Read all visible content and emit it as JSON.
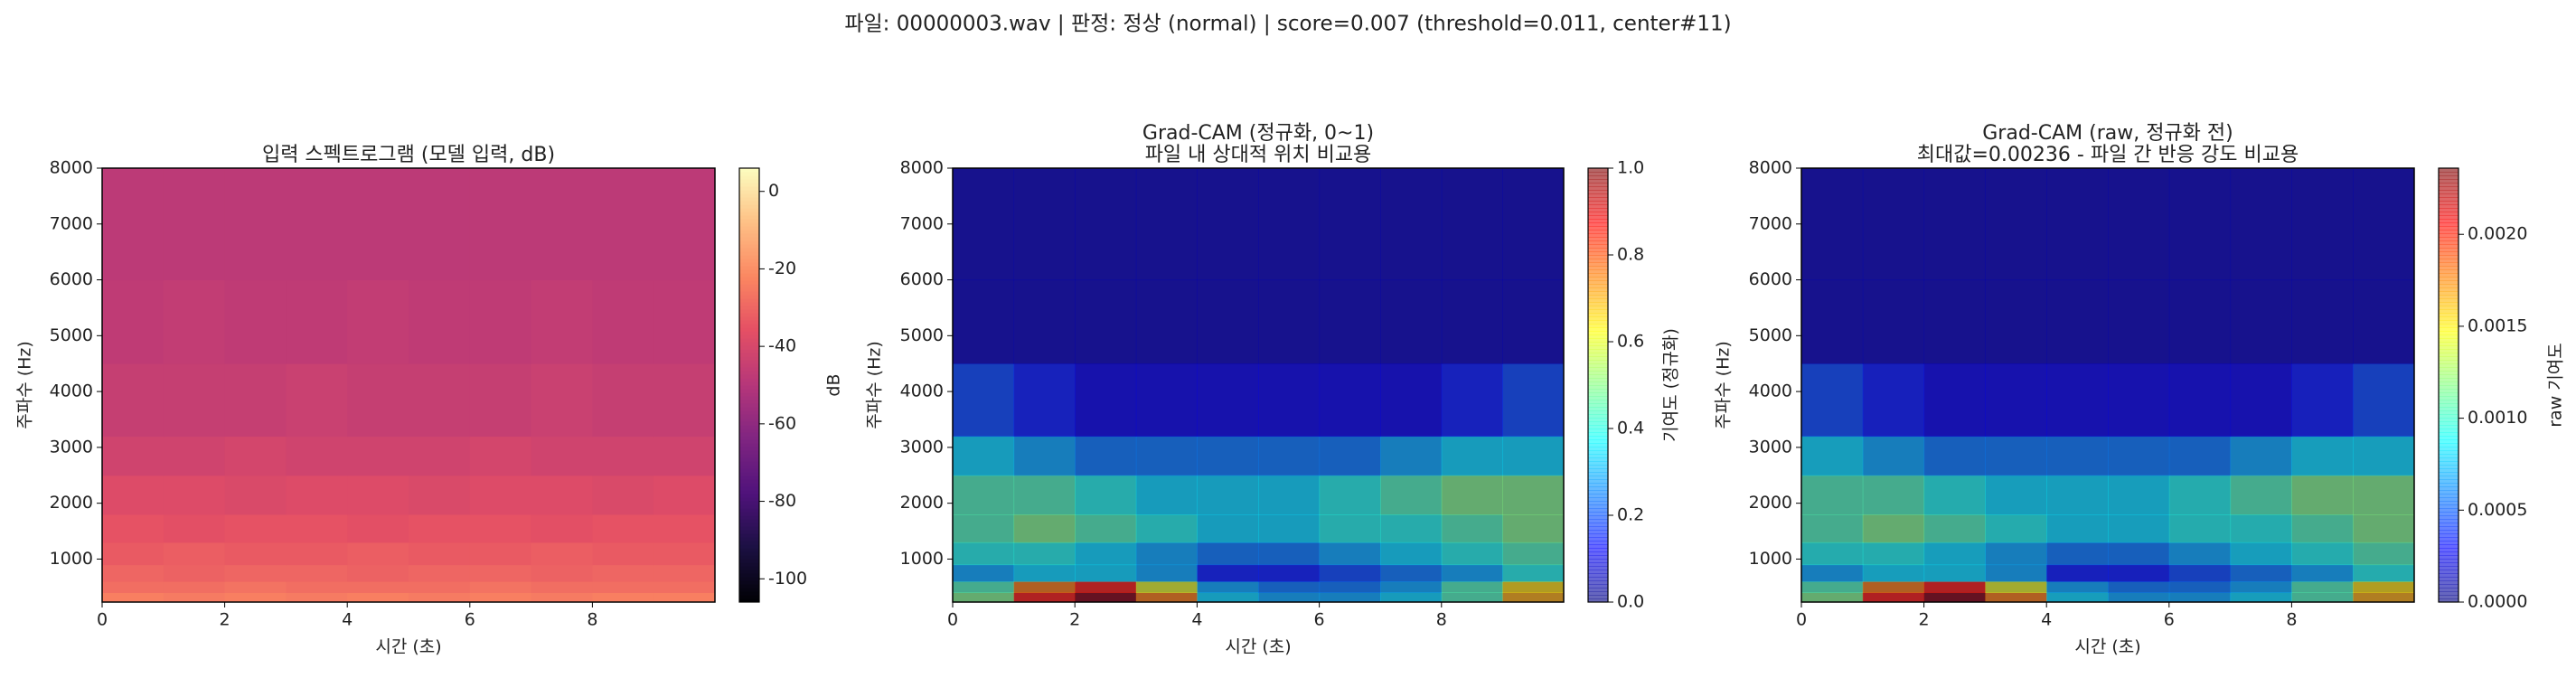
{
  "suptitle": "파일: 00000003.wav   |   판정: 정상 (normal)   |   score=0.007 (threshold=0.011, center#11)",
  "chart_data": [
    {
      "type": "heatmap",
      "title": [
        "입력 스펙트로그램 (모델 입력, dB)"
      ],
      "xlabel": "시간 (초)",
      "ylabel": "주파수 (Hz)",
      "colormap": "magma",
      "alpha": 1,
      "x_edges": [
        0,
        1,
        2,
        3,
        4,
        5,
        6,
        7,
        8,
        9,
        10
      ],
      "y_edges": [
        230,
        400,
        600,
        900,
        1300,
        1800,
        2500,
        3200,
        4500,
        6000,
        8000
      ],
      "z": [
        [
          -24,
          -25,
          -24,
          -25,
          -24,
          -25,
          -24,
          -25,
          -24,
          -24
        ],
        [
          -28,
          -28,
          -27,
          -28,
          -28,
          -28,
          -27,
          -28,
          -28,
          -28
        ],
        [
          -30,
          -31,
          -30,
          -30,
          -31,
          -30,
          -30,
          -31,
          -30,
          -30
        ],
        [
          -33,
          -32,
          -33,
          -33,
          -32,
          -33,
          -33,
          -32,
          -33,
          -33
        ],
        [
          -35,
          -36,
          -35,
          -35,
          -36,
          -35,
          -35,
          -36,
          -35,
          -35
        ],
        [
          -38,
          -38,
          -39,
          -38,
          -38,
          -39,
          -38,
          -38,
          -39,
          -38
        ],
        [
          -42,
          -42,
          -41,
          -42,
          -42,
          -42,
          -41,
          -42,
          -42,
          -42
        ],
        [
          -45,
          -45,
          -45,
          -44,
          -45,
          -45,
          -45,
          -44,
          -45,
          -45
        ],
        [
          -47,
          -46,
          -47,
          -47,
          -46,
          -47,
          -47,
          -46,
          -47,
          -47
        ],
        [
          -48,
          -48,
          -48,
          -48,
          -48,
          -48,
          -48,
          -48,
          -48,
          -48
        ]
      ],
      "xlim": [
        0,
        10
      ],
      "ylim": [
        230,
        8000
      ],
      "xticks": [
        0,
        2,
        4,
        6,
        8
      ],
      "yticks": [
        1000,
        2000,
        3000,
        4000,
        5000,
        6000,
        7000,
        8000
      ],
      "colorbar": {
        "label": "dB",
        "lim": [
          -106,
          6
        ],
        "ticks": [
          0,
          -20,
          -40,
          -60,
          -80,
          -100
        ]
      }
    },
    {
      "type": "heatmap",
      "title": [
        "Grad-CAM (정규화, 0~1)",
        "파일 내 상대적 위치 비교용"
      ],
      "xlabel": "시간 (초)",
      "ylabel": "주파수 (Hz)",
      "colormap": "jet",
      "alpha": 0.6,
      "x_edges": [
        0,
        1,
        2,
        3,
        4,
        5,
        6,
        7,
        8,
        9,
        10
      ],
      "y_edges": [
        230,
        400,
        600,
        900,
        1300,
        1800,
        2500,
        3200,
        4500,
        6000,
        8000
      ],
      "z": [
        [
          0.5,
          0.85,
          1.0,
          0.75,
          0.35,
          0.3,
          0.3,
          0.35,
          0.45,
          0.7
        ],
        [
          0.45,
          0.75,
          0.85,
          0.6,
          0.3,
          0.25,
          0.25,
          0.3,
          0.45,
          0.65
        ],
        [
          0.3,
          0.35,
          0.35,
          0.3,
          0.15,
          0.15,
          0.2,
          0.25,
          0.3,
          0.4
        ],
        [
          0.4,
          0.4,
          0.35,
          0.3,
          0.25,
          0.25,
          0.3,
          0.35,
          0.4,
          0.45
        ],
        [
          0.45,
          0.5,
          0.45,
          0.4,
          0.35,
          0.35,
          0.4,
          0.4,
          0.45,
          0.5
        ],
        [
          0.45,
          0.45,
          0.4,
          0.35,
          0.35,
          0.35,
          0.4,
          0.45,
          0.5,
          0.5
        ],
        [
          0.35,
          0.3,
          0.25,
          0.25,
          0.25,
          0.25,
          0.25,
          0.3,
          0.35,
          0.35
        ],
        [
          0.2,
          0.15,
          0.1,
          0.1,
          0.1,
          0.1,
          0.1,
          0.1,
          0.15,
          0.2
        ],
        [
          0.05,
          0.05,
          0.05,
          0.05,
          0.05,
          0.05,
          0.05,
          0.05,
          0.05,
          0.05
        ],
        [
          0.05,
          0.05,
          0.05,
          0.05,
          0.05,
          0.05,
          0.05,
          0.05,
          0.05,
          0.05
        ]
      ],
      "xlim": [
        0,
        10
      ],
      "ylim": [
        230,
        8000
      ],
      "xticks": [
        0,
        2,
        4,
        6,
        8
      ],
      "yticks": [
        1000,
        2000,
        3000,
        4000,
        5000,
        6000,
        7000,
        8000
      ],
      "colorbar": {
        "label": "기여도 (정규화)",
        "lim": [
          0,
          1
        ],
        "ticks": [
          {
            "value": 0,
            "label": "0.0"
          },
          {
            "value": 0.2,
            "label": "0.2"
          },
          {
            "value": 0.4,
            "label": "0.4"
          },
          {
            "value": 0.6,
            "label": "0.6"
          },
          {
            "value": 0.8,
            "label": "0.8"
          },
          {
            "value": 1,
            "label": "1.0"
          }
        ]
      }
    },
    {
      "type": "heatmap",
      "title": [
        "Grad-CAM (raw, 정규화 전)",
        "최대값=0.00236 - 파일 간 반응 강도 비교용"
      ],
      "xlabel": "시간 (초)",
      "ylabel": "주파수 (Hz)",
      "colormap": "jet",
      "alpha": 0.6,
      "x_edges": [
        0,
        1,
        2,
        3,
        4,
        5,
        6,
        7,
        8,
        9,
        10
      ],
      "y_edges": [
        230,
        400,
        600,
        900,
        1300,
        1800,
        2500,
        3200,
        4500,
        6000,
        8000
      ],
      "z": [
        [
          0.00118,
          0.00201,
          0.00236,
          0.00177,
          0.00083,
          0.00071,
          0.00071,
          0.00083,
          0.00106,
          0.00165
        ],
        [
          0.00106,
          0.00177,
          0.00201,
          0.00142,
          0.00071,
          0.00059,
          0.00059,
          0.00071,
          0.00106,
          0.00153
        ],
        [
          0.00071,
          0.00083,
          0.00083,
          0.00071,
          0.00035,
          0.00035,
          0.00047,
          0.00059,
          0.00071,
          0.00094
        ],
        [
          0.00094,
          0.00094,
          0.00083,
          0.00071,
          0.00059,
          0.00059,
          0.00071,
          0.00083,
          0.00094,
          0.00106
        ],
        [
          0.00106,
          0.00118,
          0.00106,
          0.00094,
          0.00083,
          0.00083,
          0.00094,
          0.00094,
          0.00106,
          0.00118
        ],
        [
          0.00106,
          0.00106,
          0.00094,
          0.00083,
          0.00083,
          0.00083,
          0.00094,
          0.00106,
          0.00118,
          0.00118
        ],
        [
          0.00083,
          0.00071,
          0.00059,
          0.00059,
          0.00059,
          0.00059,
          0.00059,
          0.00071,
          0.00083,
          0.00083
        ],
        [
          0.00047,
          0.00035,
          0.00024,
          0.00024,
          0.00024,
          0.00024,
          0.00024,
          0.00024,
          0.00035,
          0.00047
        ],
        [
          0.00012,
          0.00012,
          0.00012,
          0.00012,
          0.00012,
          0.00012,
          0.00012,
          0.00012,
          0.00012,
          0.00012
        ],
        [
          0.00012,
          0.00012,
          0.00012,
          0.00012,
          0.00012,
          0.00012,
          0.00012,
          0.00012,
          0.00012,
          0.00012
        ]
      ],
      "xlim": [
        0,
        10
      ],
      "ylim": [
        230,
        8000
      ],
      "xticks": [
        0,
        2,
        4,
        6,
        8
      ],
      "yticks": [
        1000,
        2000,
        3000,
        4000,
        5000,
        6000,
        7000,
        8000
      ],
      "colorbar": {
        "label": "raw 기여도",
        "lim": [
          0,
          0.00236
        ],
        "ticks": [
          {
            "value": 0,
            "label": "0.0000"
          },
          {
            "value": 0.0005,
            "label": "0.0005"
          },
          {
            "value": 0.001,
            "label": "0.0010"
          },
          {
            "value": 0.0015,
            "label": "0.0015"
          },
          {
            "value": 0.002,
            "label": "0.0020"
          }
        ]
      }
    }
  ]
}
